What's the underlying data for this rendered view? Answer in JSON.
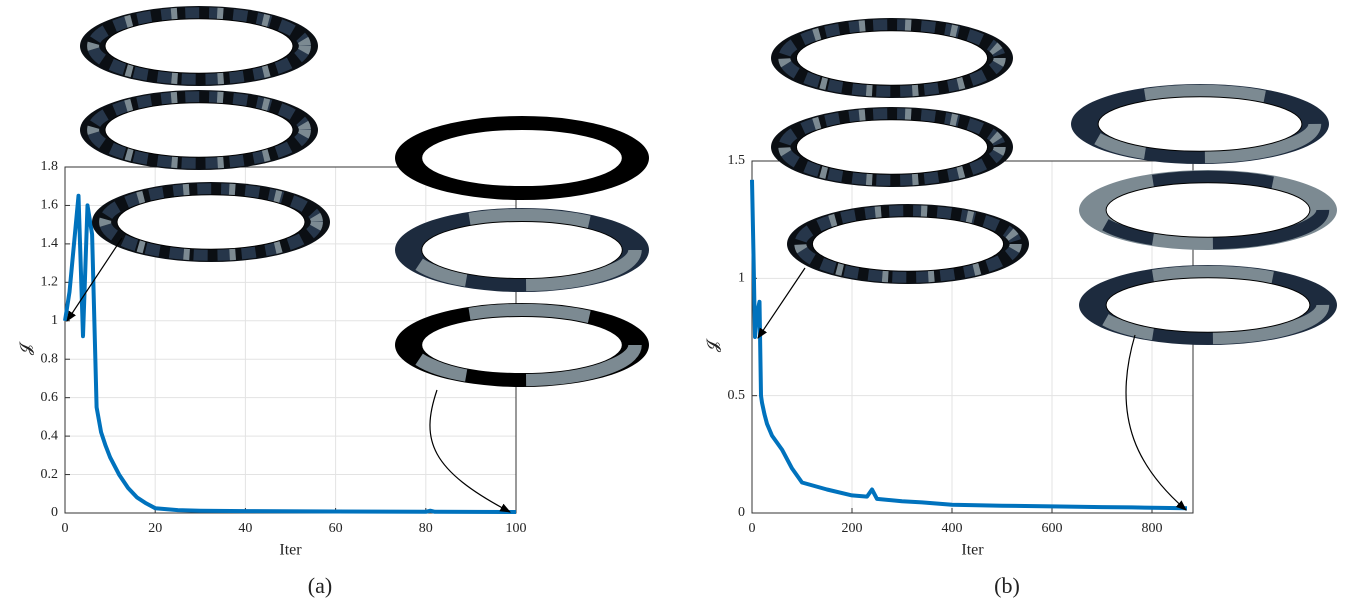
{
  "chart_data": [
    {
      "type": "line",
      "caption": "(a)",
      "xlabel": "Iter",
      "ylabel": "𝓙",
      "xlim": [
        0,
        100
      ],
      "ylim": [
        0,
        1.8
      ],
      "xticks": [
        0,
        20,
        40,
        60,
        80,
        100
      ],
      "yticks": [
        0,
        0.2,
        0.4,
        0.6,
        0.8,
        1,
        1.2,
        1.4,
        1.6,
        1.8
      ],
      "grid": true,
      "series": [
        {
          "color": "#0072bd",
          "x": [
            0,
            1,
            2,
            3,
            4,
            5,
            6,
            7,
            8,
            9,
            10,
            12,
            14,
            16,
            18,
            20,
            25,
            30,
            40,
            60,
            80,
            81,
            82,
            100
          ],
          "values": [
            1.0,
            1.15,
            1.4,
            1.65,
            0.92,
            1.6,
            1.45,
            0.55,
            0.42,
            0.35,
            0.29,
            0.2,
            0.13,
            0.08,
            0.05,
            0.025,
            0.015,
            0.012,
            0.01,
            0.008,
            0.006,
            0.012,
            0.006,
            0.005
          ]
        }
      ]
    },
    {
      "type": "line",
      "caption": "(b)",
      "xlabel": "Iter",
      "ylabel": "𝓙",
      "xlim": [
        0,
        882
      ],
      "ylim": [
        0,
        1.5
      ],
      "xticks": [
        0,
        200,
        400,
        600,
        800
      ],
      "yticks": [
        0,
        0.5,
        1,
        1.5
      ],
      "grid": true,
      "series": [
        {
          "color": "#0072bd",
          "x": [
            0,
            3,
            6,
            10,
            15,
            18,
            20,
            25,
            30,
            40,
            60,
            80,
            100,
            150,
            200,
            230,
            240,
            250,
            300,
            340,
            400,
            500,
            600,
            700,
            760,
            800,
            870
          ],
          "values": [
            1.42,
            1.1,
            0.75,
            0.85,
            0.9,
            0.5,
            0.47,
            0.42,
            0.38,
            0.33,
            0.27,
            0.19,
            0.13,
            0.1,
            0.075,
            0.07,
            0.1,
            0.06,
            0.05,
            0.045,
            0.035,
            0.031,
            0.028,
            0.025,
            0.024,
            0.022,
            0.02
          ]
        }
      ]
    }
  ]
}
